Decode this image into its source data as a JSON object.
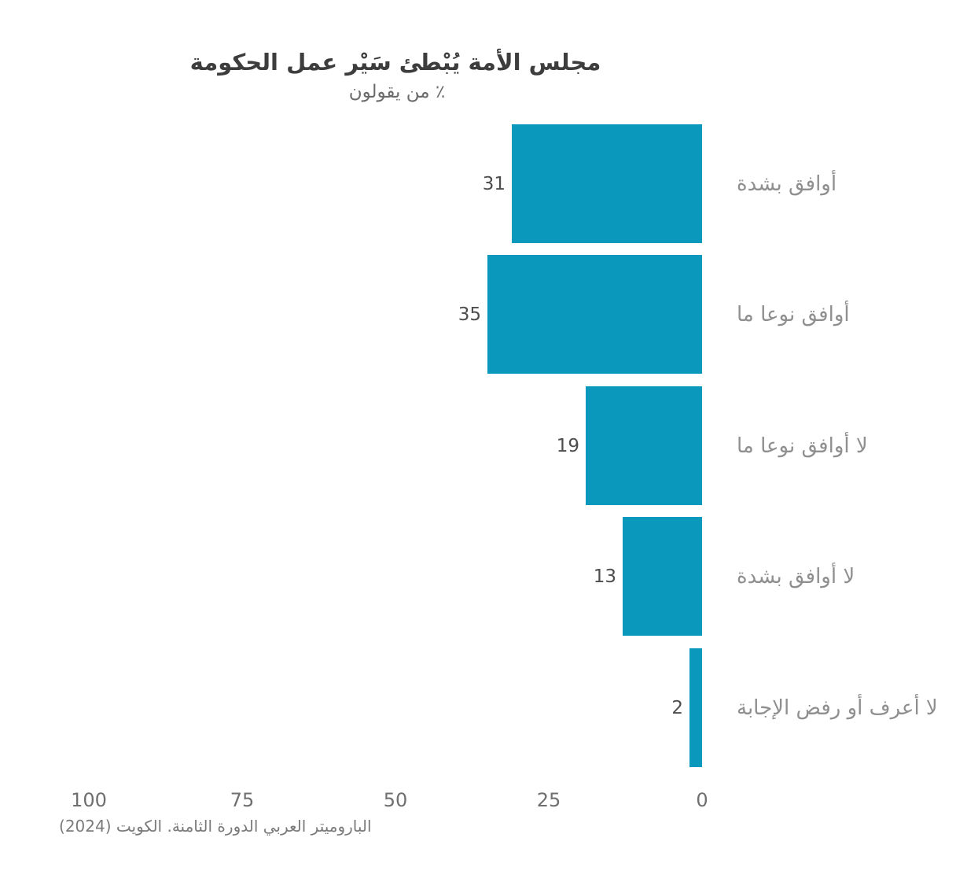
{
  "chart_data": {
    "type": "bar",
    "orientation": "horizontal",
    "direction": "rtl",
    "title": "مجلس الأمة يُبْطئ سَيْر عمل الحكومة",
    "subtitle": "٪ من يقولون",
    "categories": [
      "أوافق بشدة",
      "أوافق نوعا ما",
      "لا أوافق نوعا ما",
      "لا أوافق بشدة",
      "لا أعرف أو رفض الإجابة"
    ],
    "values": [
      31,
      35,
      19,
      13,
      2
    ],
    "x_ticks": [
      100,
      75,
      50,
      25,
      0
    ],
    "xlim": [
      0,
      100
    ],
    "grid": false,
    "legend": "none",
    "bar_color": "#0a99bc",
    "source": "الباروميتر العربي الدورة الثامنة. الكويت (2024)"
  }
}
